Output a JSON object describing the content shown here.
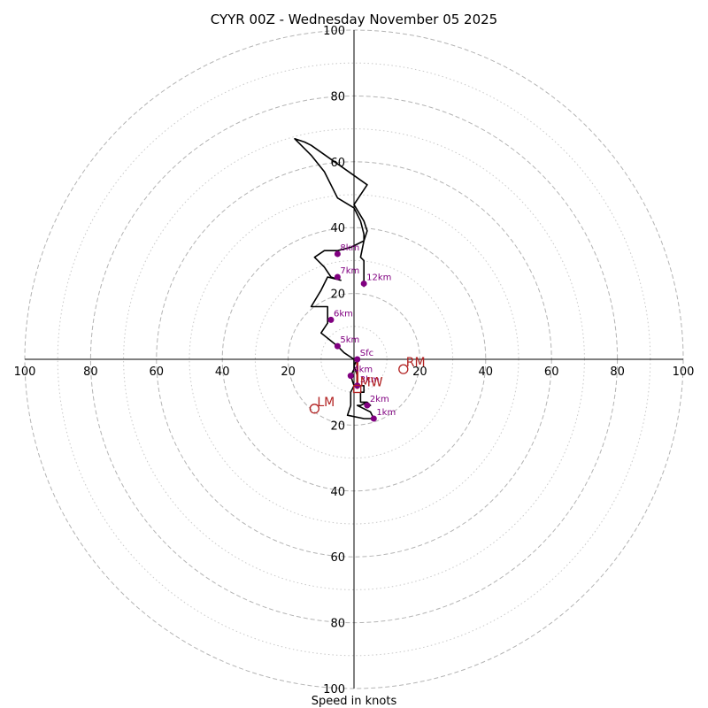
{
  "chart_data": {
    "type": "hodograph",
    "title": "CYYR 00Z - Wednesday November 05 2025",
    "xlabel": "Speed in knots",
    "units": "knots",
    "axis_range": [
      -100,
      100
    ],
    "ring_speeds_major": [
      20,
      40,
      60,
      80,
      100
    ],
    "ring_speeds_minor": [
      10,
      30,
      50,
      70,
      90
    ],
    "x_tick_labels": [
      "100",
      "80",
      "60",
      "40",
      "20",
      "20",
      "40",
      "60",
      "80",
      "100"
    ],
    "x_tick_values": [
      -100,
      -80,
      -60,
      -40,
      -20,
      20,
      40,
      60,
      80,
      100
    ],
    "y_tick_labels": [
      "100",
      "80",
      "60",
      "40",
      "20",
      "20",
      "40",
      "60",
      "80",
      "100"
    ],
    "y_tick_values": [
      100,
      80,
      60,
      40,
      20,
      -20,
      -40,
      -60,
      -80,
      -100
    ],
    "trace_color": "#000000",
    "marker_color": "#800080",
    "motion_color": "#b22222",
    "trace": [
      [
        1,
        0
      ],
      [
        0,
        -2
      ],
      [
        1,
        -5
      ],
      [
        1,
        -8
      ],
      [
        3,
        -8
      ],
      [
        3,
        -10
      ],
      [
        2,
        -10
      ],
      [
        2,
        -13
      ],
      [
        4,
        -13
      ],
      [
        5,
        -14
      ],
      [
        4,
        -13
      ],
      [
        2,
        -14
      ],
      [
        1,
        -14
      ],
      [
        3,
        -15
      ],
      [
        5,
        -16
      ],
      [
        6,
        -18
      ],
      [
        3,
        -18
      ],
      [
        -2,
        -17
      ],
      [
        -1,
        -14
      ],
      [
        -1,
        -10
      ],
      [
        0,
        -8
      ],
      [
        -1,
        -5
      ],
      [
        0,
        -3
      ],
      [
        0,
        0
      ],
      [
        -3,
        2
      ],
      [
        -5,
        4
      ],
      [
        -10,
        8
      ],
      [
        -8,
        11
      ],
      [
        -8,
        13
      ],
      [
        -8,
        16
      ],
      [
        -10,
        16
      ],
      [
        -13,
        16
      ],
      [
        -10,
        21
      ],
      [
        -8,
        25
      ],
      [
        -4,
        24
      ],
      [
        -7,
        25
      ],
      [
        -9,
        28
      ],
      [
        -12,
        31
      ],
      [
        -9,
        33
      ],
      [
        -5,
        33
      ],
      [
        -1,
        34
      ],
      [
        3,
        36
      ],
      [
        3,
        38
      ],
      [
        2,
        42
      ],
      [
        0,
        46
      ],
      [
        -5,
        49
      ],
      [
        -9,
        57
      ],
      [
        -13,
        62
      ],
      [
        -18,
        67
      ],
      [
        -15,
        66
      ],
      [
        -13,
        65
      ],
      [
        4,
        53
      ],
      [
        0,
        47
      ],
      [
        3,
        42
      ],
      [
        4,
        39
      ],
      [
        3,
        36
      ],
      [
        2,
        31
      ],
      [
        3,
        30
      ],
      [
        3,
        27
      ],
      [
        3,
        22
      ]
    ],
    "height_markers": [
      {
        "label": "Sfc",
        "u": 1,
        "v": 0
      },
      {
        "label": "1km",
        "u": 6,
        "v": -18
      },
      {
        "label": "2km",
        "u": 4,
        "v": -14
      },
      {
        "label": "3km",
        "u": 1,
        "v": -8
      },
      {
        "label": "4km",
        "u": -1,
        "v": -5
      },
      {
        "label": "5km",
        "u": -5,
        "v": 4
      },
      {
        "label": "6km",
        "u": -7,
        "v": 12
      },
      {
        "label": "7km",
        "u": -5,
        "v": 25
      },
      {
        "label": "8km",
        "u": -5,
        "v": 32
      },
      {
        "label": "12km",
        "u": 3,
        "v": 23
      }
    ],
    "storm_motions": [
      {
        "label": "RM",
        "u": 15,
        "v": -3
      },
      {
        "label": "LM",
        "u": -12,
        "v": -15
      },
      {
        "label": "MW",
        "u": 1,
        "v": -9
      }
    ]
  }
}
